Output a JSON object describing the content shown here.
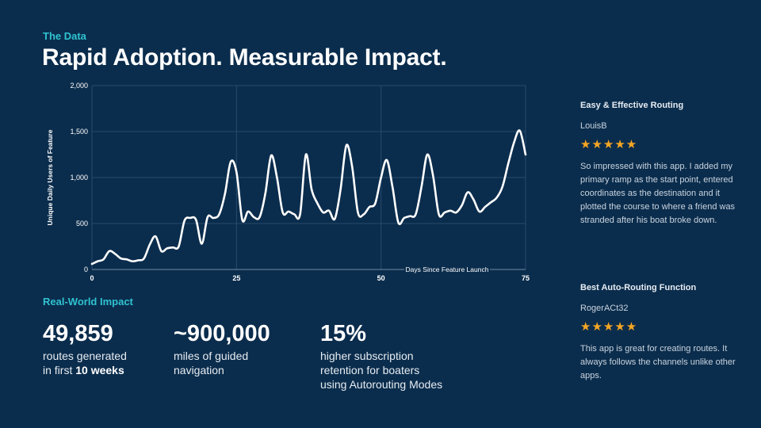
{
  "header": {
    "eyebrow": "The Data",
    "title": "Rapid Adoption. Measurable Impact."
  },
  "chart_data": {
    "type": "line",
    "ylabel": "Unique Daily Users of Feature",
    "xlabel": "Days Since Feature Launch",
    "xlim": [
      0,
      75
    ],
    "ylim": [
      0,
      2000
    ],
    "x_ticks": [
      "0",
      "25",
      "50",
      "75"
    ],
    "y_ticks": [
      "0",
      "500",
      "1,000",
      "1,500",
      "2,000"
    ],
    "grid": true,
    "line_color": "#ffffff",
    "x": [
      0,
      1,
      2,
      3,
      4,
      5,
      6,
      7,
      8,
      9,
      10,
      11,
      12,
      13,
      14,
      15,
      16,
      17,
      18,
      19,
      20,
      21,
      22,
      23,
      24,
      25,
      26,
      27,
      28,
      29,
      30,
      31,
      32,
      33,
      34,
      35,
      36,
      37,
      38,
      39,
      40,
      41,
      42,
      43,
      44,
      45,
      46,
      47,
      48,
      49,
      50,
      51,
      52,
      53,
      54,
      55,
      56,
      57,
      58,
      59,
      60,
      61,
      62,
      63,
      64,
      65,
      66,
      67,
      68,
      69,
      70,
      71,
      72,
      73,
      74,
      75
    ],
    "y": [
      60,
      90,
      110,
      200,
      170,
      120,
      110,
      90,
      100,
      120,
      270,
      360,
      200,
      230,
      240,
      250,
      530,
      560,
      540,
      280,
      570,
      560,
      600,
      820,
      1170,
      1060,
      540,
      630,
      570,
      570,
      830,
      1240,
      1000,
      620,
      630,
      600,
      600,
      1250,
      870,
      720,
      620,
      640,
      550,
      870,
      1350,
      1120,
      620,
      600,
      680,
      720,
      1000,
      1190,
      890,
      510,
      560,
      580,
      600,
      900,
      1250,
      1020,
      600,
      620,
      640,
      620,
      700,
      840,
      760,
      630,
      680,
      730,
      780,
      900,
      1150,
      1380,
      1510,
      1250
    ]
  },
  "impact": {
    "label": "Real-World Impact",
    "stats": [
      {
        "value": "49,859",
        "line1": "routes generated",
        "line2_prefix": "in first ",
        "line2_bold": "10 weeks"
      },
      {
        "value": "~900,000",
        "line1": "miles of guided",
        "line2": "navigation"
      },
      {
        "value": "15%",
        "line1": "higher subscription",
        "line2": "retention for boaters",
        "line3": "using Autorouting Modes"
      }
    ]
  },
  "reviews": [
    {
      "title": "Easy & Effective Routing",
      "author": "LouisB",
      "rating": 5,
      "stars": "★★★★★",
      "text": "So impressed with this app. I added my primary ramp as the start point, entered coordinates as the destination and it plotted the course to where a friend was stranded after his boat broke down."
    },
    {
      "title": "Best Auto-Routing Function",
      "author": "RogerACt32",
      "rating": 5,
      "stars": "★★★★★",
      "text": "This app is great for creating routes. It always follows the channels unlike other apps."
    }
  ]
}
